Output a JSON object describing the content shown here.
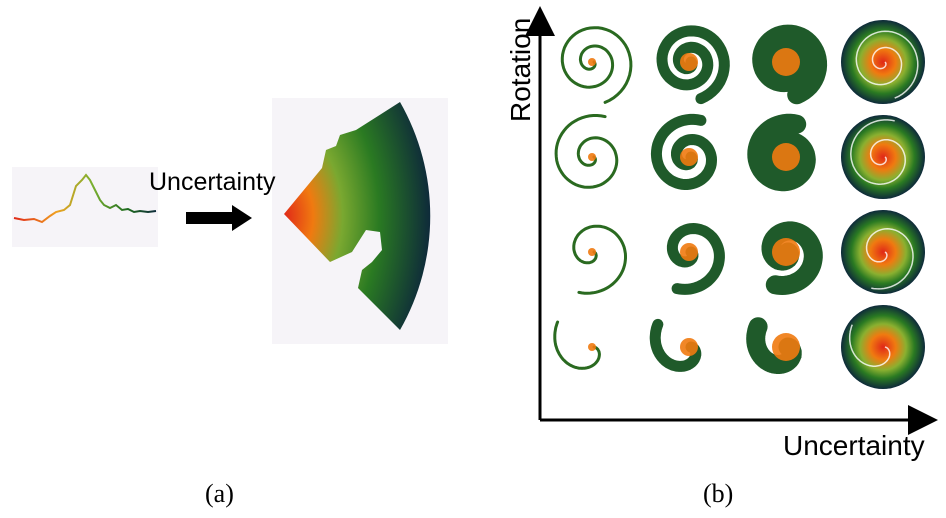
{
  "panel_a": {
    "arrow_label": "Uncertainty",
    "caption": "(a)"
  },
  "panel_b": {
    "x_axis_label": "Uncertainty",
    "y_axis_label": "Rotation",
    "caption": "(b)",
    "grid_rows": 4,
    "grid_cols": 4
  },
  "colors": {
    "dark": "#0e2a3a",
    "green": "#1f6b1f",
    "mid_green": "#5a9a2a",
    "yellow": "#e0b000",
    "orange": "#f07a10",
    "red": "#e02818",
    "panel_bg": "#f6f4f8"
  }
}
